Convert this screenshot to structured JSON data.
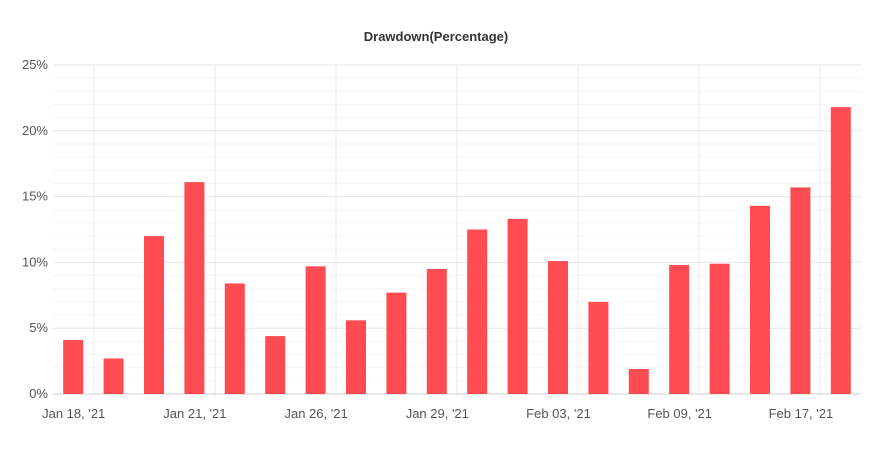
{
  "chart_data": {
    "type": "bar",
    "title": "Drawdown(Percentage)",
    "xlabel": "",
    "ylabel": "",
    "ylim": [
      0,
      25
    ],
    "y_ticks": [
      "0%",
      "5%",
      "10%",
      "15%",
      "20%",
      "25%"
    ],
    "x_tick_labels": [
      "Jan 18, '21",
      "Jan 21, '21",
      "Jan 26, '21",
      "Jan 29, '21",
      "Feb 03, '21",
      "Feb 09, '21",
      "Feb 17, '21"
    ],
    "grid": true,
    "legend": "none",
    "bar_color": "#ff4c52",
    "values": [
      4.1,
      2.7,
      12.0,
      16.1,
      8.4,
      4.4,
      9.7,
      5.6,
      7.7,
      9.5,
      12.5,
      13.3,
      10.1,
      7.0,
      1.9,
      9.8,
      9.9,
      14.3,
      15.7,
      21.8
    ]
  }
}
